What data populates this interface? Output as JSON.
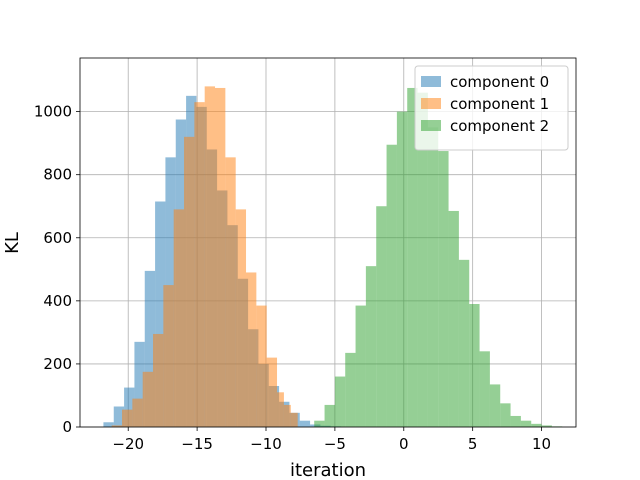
{
  "chart_data": {
    "type": "bar",
    "subtype": "histogram",
    "xlabel": "iteration",
    "ylabel": "KL",
    "xlim": [
      -23.5,
      12.5
    ],
    "ylim": [
      0,
      1170
    ],
    "xticks": [
      -20,
      -15,
      -10,
      -5,
      0,
      5,
      10
    ],
    "yticks": [
      0,
      200,
      400,
      600,
      800,
      1000
    ],
    "grid": true,
    "legend_position": "top-right",
    "series": [
      {
        "name": "component 0",
        "color": "#1f77b4",
        "alpha": 0.5,
        "bin_edges": [
          -21.8,
          -21.05,
          -20.3,
          -19.55,
          -18.8,
          -18.05,
          -17.3,
          -16.55,
          -15.8,
          -15.05,
          -14.3,
          -13.55,
          -12.8,
          -12.05,
          -11.3,
          -10.55,
          -9.8,
          -9.05,
          -8.3,
          -7.55,
          -6.8,
          -6.05,
          -5.3,
          -4.55
        ],
        "counts": [
          15,
          65,
          125,
          270,
          495,
          715,
          855,
          975,
          1050,
          1015,
          880,
          750,
          640,
          470,
          310,
          200,
          130,
          80,
          45,
          20,
          8,
          4,
          2
        ]
      },
      {
        "name": "component 1",
        "color": "#ff7f0e",
        "alpha": 0.5,
        "bin_edges": [
          -21.2,
          -20.45,
          -19.7,
          -18.95,
          -18.2,
          -17.45,
          -16.7,
          -15.95,
          -15.2,
          -14.45,
          -13.7,
          -12.95,
          -12.2,
          -11.45,
          -10.7,
          -9.95,
          -9.2,
          -8.7,
          -8.2,
          -7.7
        ],
        "counts": [
          5,
          55,
          90,
          175,
          295,
          450,
          690,
          920,
          1030,
          1080,
          1075,
          855,
          690,
          490,
          385,
          220,
          110,
          70,
          45
        ]
      },
      {
        "name": "component 2",
        "color": "#2ca02c",
        "alpha": 0.5,
        "bin_edges": [
          -6.5,
          -5.75,
          -5.0,
          -4.25,
          -3.5,
          -2.75,
          -2.0,
          -1.25,
          -0.5,
          0.25,
          1.0,
          1.75,
          2.5,
          3.25,
          4.0,
          4.75,
          5.5,
          6.25,
          7.0,
          7.75,
          8.5,
          9.25,
          10.0,
          10.75,
          11.5
        ],
        "counts": [
          20,
          70,
          160,
          235,
          385,
          510,
          700,
          895,
          1000,
          1075,
          1060,
          950,
          875,
          685,
          530,
          390,
          240,
          135,
          75,
          35,
          20,
          10,
          5,
          2
        ]
      }
    ]
  }
}
